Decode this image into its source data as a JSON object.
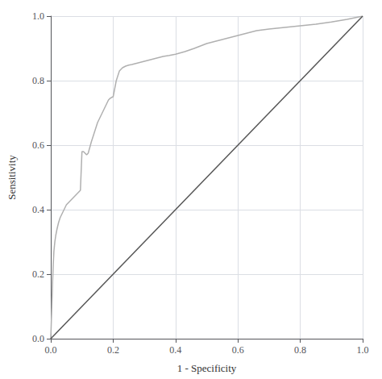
{
  "chart_data": {
    "type": "line",
    "xlabel": "1 - Specificity",
    "ylabel": "Sensitivity",
    "xlim": [
      0.0,
      1.0
    ],
    "ylim": [
      0.0,
      1.0
    ],
    "xticks": [
      {
        "value": 0.0,
        "label": "0.0"
      },
      {
        "value": 0.2,
        "label": "0.2"
      },
      {
        "value": 0.4,
        "label": "0.4"
      },
      {
        "value": 0.6,
        "label": "0.6"
      },
      {
        "value": 0.8,
        "label": "0.8"
      },
      {
        "value": 1.0,
        "label": "1.0"
      }
    ],
    "yticks": [
      {
        "value": 0.0,
        "label": "0.0"
      },
      {
        "value": 0.2,
        "label": "0.2"
      },
      {
        "value": 0.4,
        "label": "0.4"
      },
      {
        "value": 0.6,
        "label": "0.6"
      },
      {
        "value": 0.8,
        "label": "0.8"
      },
      {
        "value": 1.0,
        "label": "1.0"
      }
    ],
    "grid": true,
    "series": [
      {
        "color": "#b0b0b0",
        "x": [
          0.0,
          0.002,
          0.004,
          0.006,
          0.008,
          0.01,
          0.013,
          0.016,
          0.02,
          0.025,
          0.03,
          0.035,
          0.04,
          0.045,
          0.05,
          0.055,
          0.06,
          0.065,
          0.07,
          0.075,
          0.08,
          0.085,
          0.09,
          0.095,
          0.1,
          0.105,
          0.11,
          0.115,
          0.12,
          0.13,
          0.14,
          0.15,
          0.16,
          0.17,
          0.175,
          0.18,
          0.185,
          0.19,
          0.195,
          0.2,
          0.21,
          0.22,
          0.23,
          0.24,
          0.25,
          0.26,
          0.28,
          0.3,
          0.32,
          0.34,
          0.36,
          0.38,
          0.4,
          0.43,
          0.46,
          0.5,
          0.54,
          0.58,
          0.62,
          0.66,
          0.7,
          0.75,
          0.8,
          0.85,
          0.9,
          0.95,
          1.0
        ],
        "values": [
          0.0,
          0.06,
          0.12,
          0.18,
          0.23,
          0.27,
          0.3,
          0.32,
          0.34,
          0.36,
          0.375,
          0.385,
          0.395,
          0.405,
          0.415,
          0.42,
          0.425,
          0.43,
          0.435,
          0.44,
          0.445,
          0.45,
          0.455,
          0.46,
          0.58,
          0.58,
          0.575,
          0.57,
          0.575,
          0.61,
          0.64,
          0.67,
          0.69,
          0.71,
          0.72,
          0.73,
          0.74,
          0.745,
          0.748,
          0.75,
          0.8,
          0.83,
          0.84,
          0.845,
          0.848,
          0.85,
          0.855,
          0.86,
          0.865,
          0.87,
          0.875,
          0.878,
          0.882,
          0.89,
          0.9,
          0.915,
          0.925,
          0.935,
          0.945,
          0.955,
          0.96,
          0.965,
          0.97,
          0.975,
          0.982,
          0.99,
          1.0
        ]
      },
      {
        "color": "#555555",
        "x": [
          0,
          1
        ],
        "values": [
          0,
          1
        ]
      }
    ]
  }
}
